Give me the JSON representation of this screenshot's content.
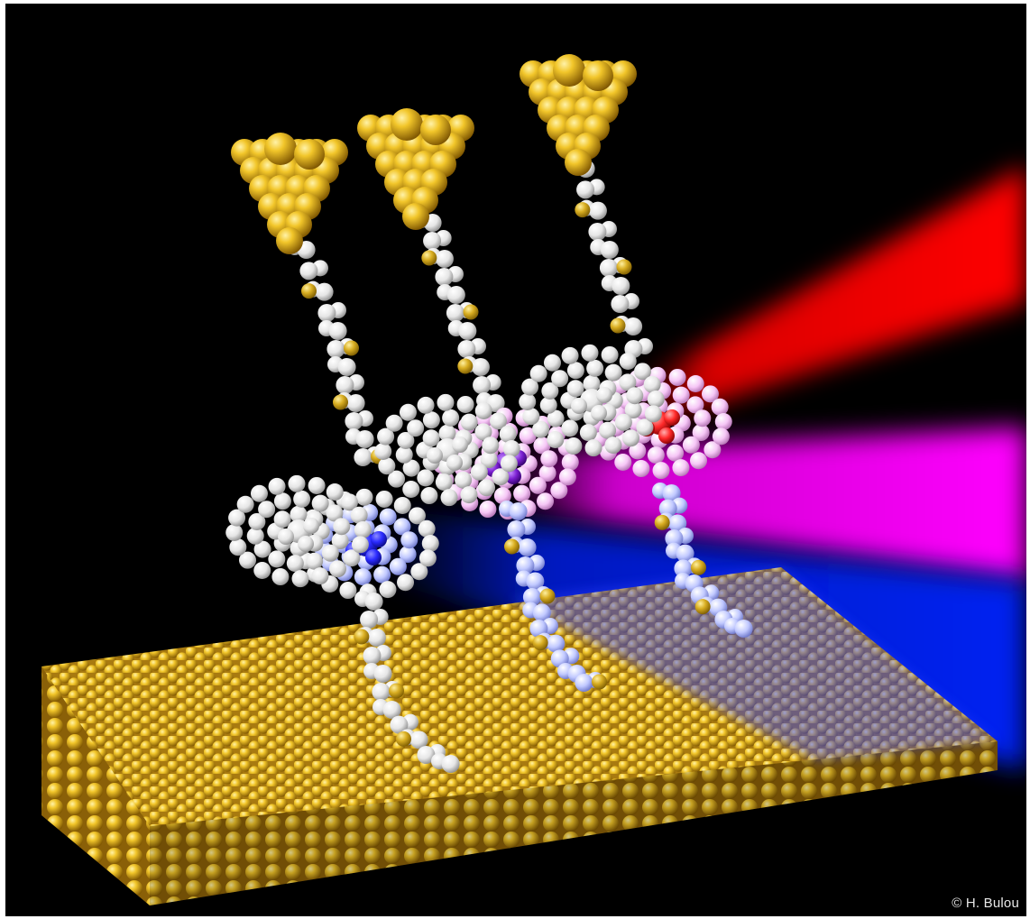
{
  "image": {
    "credit": "© H. Bulou",
    "colors": {
      "background": "#000000",
      "gold": "#e0b020",
      "beam_red": "#ff0000",
      "beam_magenta": "#ff00ff",
      "beam_blue": "#0022ff",
      "atom_white": "#f4f4f4",
      "atom_sulfur": "#d8b030",
      "core_blue": "#2a2aff",
      "core_purple": "#7a1fd0"
    }
  }
}
